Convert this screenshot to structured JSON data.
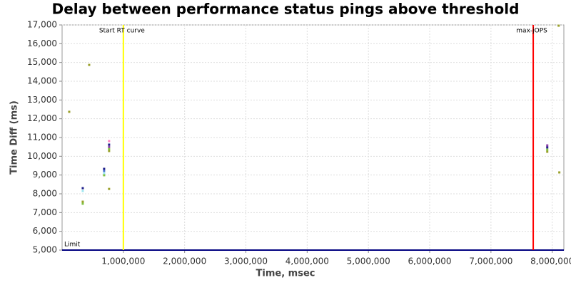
{
  "chart_data": {
    "type": "scatter",
    "title": "Delay between performance status pings above threshold",
    "x_label": "Time, msec",
    "y_label": "Time Diff (ms)",
    "xlim": [
      0,
      8190000
    ],
    "xticks": [
      {
        "value": 1000000,
        "label": "1,000,000"
      },
      {
        "value": 2000000,
        "label": "2,000,000"
      },
      {
        "value": 3000000,
        "label": "3,000,000"
      },
      {
        "value": 4000000,
        "label": "4,000,000"
      },
      {
        "value": 5000000,
        "label": "5,000,000"
      },
      {
        "value": 6000000,
        "label": "6,000,000"
      },
      {
        "value": 7000000,
        "label": "7,000,000"
      },
      {
        "value": 8000000,
        "label": "8,000,000"
      }
    ],
    "ylim": [
      5000,
      17000
    ],
    "yticks": [
      {
        "value": 5000,
        "label": "5,000"
      },
      {
        "value": 6000,
        "label": "6,000"
      },
      {
        "value": 7000,
        "label": "7,000"
      },
      {
        "value": 8000,
        "label": "8,000"
      },
      {
        "value": 9000,
        "label": "9,000"
      },
      {
        "value": 10000,
        "label": "10,000"
      },
      {
        "value": 11000,
        "label": "11,000"
      },
      {
        "value": 12000,
        "label": "12,000"
      },
      {
        "value": 13000,
        "label": "13,000"
      },
      {
        "value": 14000,
        "label": "14,000"
      },
      {
        "value": 15000,
        "label": "15,000"
      },
      {
        "value": 16000,
        "label": "16,000"
      },
      {
        "value": 17000,
        "label": "17,000"
      }
    ],
    "grid": true,
    "vlines": [
      {
        "label": "Start RT curve",
        "value": 1000000,
        "color": "#ffff00"
      },
      {
        "label": "max-jOPS",
        "value": 7690000,
        "color": "#ff0000"
      }
    ],
    "hlines": [
      {
        "label": "Limit",
        "value": 5000,
        "color": "#000080"
      }
    ],
    "series": [
      {
        "color": "#9aa02a",
        "x": [
          116000,
          337000,
          442000,
          767000,
          767000,
          7919000,
          8116000,
          8105000
        ],
        "values": [
          12370,
          7580,
          14870,
          10280,
          8260,
          10240,
          9140,
          16960
        ]
      },
      {
        "color": "#7fc241",
        "x": [
          337000,
          686000,
          767000,
          7919000
        ],
        "values": [
          7470,
          8990,
          10390,
          10350
        ]
      },
      {
        "color": "#1f1f8a",
        "x": [
          337000,
          686000,
          767000,
          7919000
        ],
        "values": [
          8300,
          9330,
          10620,
          10470
        ]
      },
      {
        "color": "#9ee6f0",
        "x": [
          337000,
          686000
        ],
        "values": [
          8150,
          9100
        ]
      },
      {
        "color": "#8a3fa8",
        "x": [
          767000,
          7919000
        ],
        "values": [
          10500,
          10580
        ]
      },
      {
        "color": "#ff80c0",
        "x": [
          767000
        ],
        "values": [
          10810
        ]
      },
      {
        "color": "#4a6fd0",
        "x": [
          686000
        ],
        "values": [
          9220
        ]
      }
    ]
  }
}
